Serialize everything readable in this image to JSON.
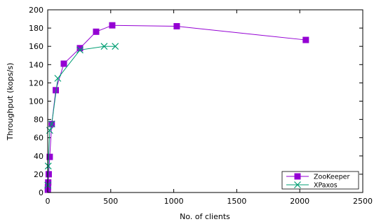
{
  "chart_data": {
    "type": "line",
    "xlabel": "No. of clients",
    "ylabel": "Throughput (kops/s)",
    "xlim": [
      0,
      2500
    ],
    "ylim": [
      0,
      200
    ],
    "xticks": [
      0,
      500,
      1000,
      1500,
      2000,
      2500
    ],
    "yticks": [
      0,
      20,
      40,
      60,
      80,
      100,
      120,
      140,
      160,
      180,
      200
    ],
    "grid": false,
    "legend_position": "bottom-right",
    "series": [
      {
        "name": "ZooKeeper",
        "color": "#9400D3",
        "marker": "square",
        "x": [
          1,
          2,
          4,
          8,
          16,
          32,
          64,
          128,
          256,
          384,
          512,
          1024,
          2048
        ],
        "y": [
          3,
          6,
          11,
          20,
          39,
          75,
          112,
          141,
          158,
          176,
          183,
          182,
          167
        ]
      },
      {
        "name": "XPaxos",
        "color": "#009E73",
        "marker": "x",
        "x": [
          1,
          4,
          16,
          32,
          80,
          256,
          448,
          536
        ],
        "y": [
          8,
          29,
          68,
          75,
          125,
          156,
          160,
          160
        ]
      }
    ]
  }
}
